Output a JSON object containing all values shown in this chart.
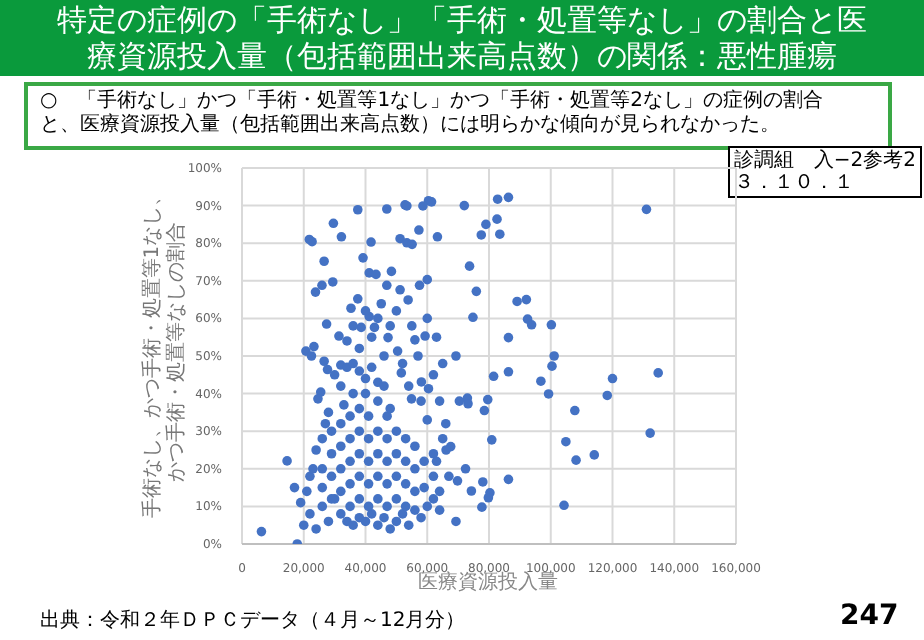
{
  "chart_data": {
    "type": "scatter",
    "title": "特定の症例の「手術なし」「手術・処置等なし」の割合と医療資源投入量（包括範囲出来高点数）の関係：悪性腫瘍",
    "xlabel": "医療資源投入量",
    "ylabel": "手術なし、かつ手術・処置等1なし、かつ手術・処置等なしの割合",
    "annotations": [
      "○　「手術なし」かつ「手術・処置等1なし」かつ「手術・処置等2なし」の症例の割合と、医療資源投入量（包括範囲出来高点数）には明らかな傾向が見られなかった。",
      "診調組　入−2参考2\n３．１０．１",
      "出典：令和２年ＤＰＣデータ（４月～12月分）",
      "247"
    ],
    "xlim": [
      0,
      160000
    ],
    "xticks": [
      0,
      {
        "value": 20000,
        "label": "20,000"
      },
      {
        "value": 40000,
        "label": "40,000"
      },
      {
        "value": 60000,
        "label": "60,000"
      },
      {
        "value": 80000,
        "label": "80,000"
      },
      {
        "value": 100000,
        "label": "100,000"
      },
      {
        "value": 120000,
        "label": "120,000"
      },
      {
        "value": 140000,
        "label": "140,000"
      },
      {
        "value": 160000,
        "label": "160,000"
      }
    ],
    "ylim": [
      0,
      100
    ],
    "yticks": [
      {
        "value": 0,
        "label": "0%"
      },
      {
        "value": 10,
        "label": "10%"
      },
      {
        "value": 20,
        "label": "20%"
      },
      {
        "value": 30,
        "label": "30%"
      },
      {
        "value": 40,
        "label": "40%"
      },
      {
        "value": 50,
        "label": "50%"
      },
      {
        "value": 60,
        "label": "60%"
      },
      {
        "value": 70,
        "label": "70%"
      },
      {
        "value": 80,
        "label": "80%"
      },
      {
        "value": 90,
        "label": "90%"
      },
      {
        "value": 100,
        "label": "100%"
      }
    ],
    "grid": true,
    "legend": false,
    "marker": "circle",
    "series": [
      {
        "color": "#4472c4",
        "x": [
          131000,
          82800,
          86300,
          72000,
          60400,
          52800,
          79000,
          77500,
          82600,
          83500,
          63300,
          73700,
          75900,
          89100,
          92100,
          92500,
          93800,
          100200,
          86300,
          101100,
          100400,
          86300,
          81500,
          96800,
          99300,
          120000,
          118300,
          134800,
          107800,
          132200,
          104900,
          108200,
          114100,
          86300,
          104300,
          78000,
          80300,
          79800,
          77700,
          74300,
          69300,
          80900,
          78500,
          79600,
          69300,
          74800,
          73000,
          73200,
          70400,
          69800,
          72400,
          67600,
          66100,
          6300,
          17900,
          14600,
          21800,
          22700,
          37500,
          29600,
          46900,
          53400,
          58600,
          61400,
          32200,
          41800,
          51200,
          53400,
          55100,
          57300,
          26600,
          39200,
          41200,
          43400,
          48400,
          46900,
          25900,
          23800,
          29400,
          37500,
          35300,
          45100,
          51200,
          53800,
          57500,
          60000,
          27400,
          31400,
          41200,
          42900,
          38600,
          20700,
          23300,
          22500,
          26600,
          27700,
          32000,
          25500,
          24600,
          47300,
          50400,
          56000,
          59300,
          51600,
          58100,
          54900,
          60400,
          20000,
          22000,
          24000,
          26000,
          28000,
          30000,
          32000,
          34000,
          36000,
          38000,
          40000,
          42000,
          44000,
          46000,
          48000,
          50000,
          52000,
          54000,
          56000,
          58000,
          60000,
          62000,
          64000,
          17000,
          19000,
          21000,
          22000,
          23000,
          24000,
          26000,
          27000,
          28000,
          29000,
          26000,
          26000,
          29000,
          29000,
          29000,
          32000,
          32000,
          32000,
          32000,
          35000,
          35000,
          35000,
          35000,
          35000,
          38000,
          38000,
          38000,
          38000,
          38000,
          41000,
          41000,
          41000,
          41000,
          41000,
          44000,
          44000,
          44000,
          44000,
          47000,
          47000,
          47000,
          47000,
          47000,
          50000,
          50000,
          50000,
          50000,
          53000,
          53000,
          53000,
          53000,
          56000,
          56000,
          56000,
          59000,
          59000,
          62000,
          62000,
          64000,
          30000,
          32000,
          34000,
          36000,
          38000,
          40000,
          42000,
          44000,
          36000,
          40000,
          44000,
          46000,
          33000,
          48000,
          34000,
          36000,
          38000,
          40000,
          42000,
          44000,
          46000,
          48000,
          50000,
          52000,
          55000,
          57000,
          60000,
          63000,
          65000,
          62000,
          64000,
          66000,
          65000,
          63000,
          67000,
          60000,
          58000,
          54000
        ],
        "values": [
          89,
          91.7,
          92.2,
          90,
          91.3,
          90.2,
          85,
          82.2,
          86.4,
          82.4,
          81.7,
          73.9,
          67.2,
          64.5,
          65,
          59.8,
          58.3,
          58.3,
          54.9,
          50,
          47.3,
          45.8,
          44.6,
          43.3,
          39.9,
          44,
          39.5,
          45.5,
          35.5,
          29.5,
          27.2,
          22.3,
          23.7,
          17.2,
          10.3,
          16.5,
          13.6,
          12.3,
          9.8,
          14.1,
          6,
          27.7,
          35.5,
          38.4,
          50,
          60.3,
          38.8,
          37.3,
          38,
          16.8,
          20,
          25.9,
          25,
          3.3,
          0,
          22.1,
          81,
          80.4,
          88.9,
          85.3,
          89.1,
          89.9,
          89.9,
          91,
          81.7,
          80.3,
          81.2,
          80.1,
          79.7,
          83.5,
          75.2,
          76.1,
          72.1,
          71.7,
          72.5,
          68.8,
          68.8,
          67,
          69.7,
          65.2,
          62.7,
          63.9,
          67.6,
          64.9,
          68.8,
          70.3,
          58.5,
          55.3,
          60.5,
          57.6,
          57.6,
          51.3,
          52.5,
          50,
          48.6,
          46.4,
          47.6,
          40.4,
          38.6,
          54.9,
          51.3,
          54.3,
          55.3,
          45.5,
          43.1,
          38.6,
          41.3,
          5,
          8,
          4,
          10,
          6,
          12,
          8,
          6,
          5,
          7,
          6,
          8,
          5,
          7,
          4,
          6,
          8,
          5,
          9,
          7,
          10,
          12,
          9,
          15,
          11,
          14,
          18,
          20,
          25,
          28,
          32,
          35,
          30,
          15,
          20,
          12,
          18,
          24,
          14,
          20,
          26,
          32,
          10,
          16,
          22,
          28,
          34,
          12,
          18,
          24,
          30,
          36,
          10,
          16,
          22,
          28,
          34,
          12,
          18,
          24,
          30,
          10,
          16,
          22,
          28,
          34,
          12,
          18,
          24,
          30,
          10,
          16,
          22,
          28,
          14,
          20,
          26,
          15,
          22,
          18,
          24,
          14,
          45,
          42,
          47,
          48,
          46,
          44,
          47,
          43,
          40,
          40,
          38,
          42,
          37,
          36,
          54,
          58,
          52,
          62,
          55,
          60,
          50,
          58,
          62,
          48,
          58,
          50,
          60,
          55,
          48,
          45,
          38,
          32,
          28,
          22,
          18,
          33,
          38,
          42
        ]
      }
    ]
  }
}
